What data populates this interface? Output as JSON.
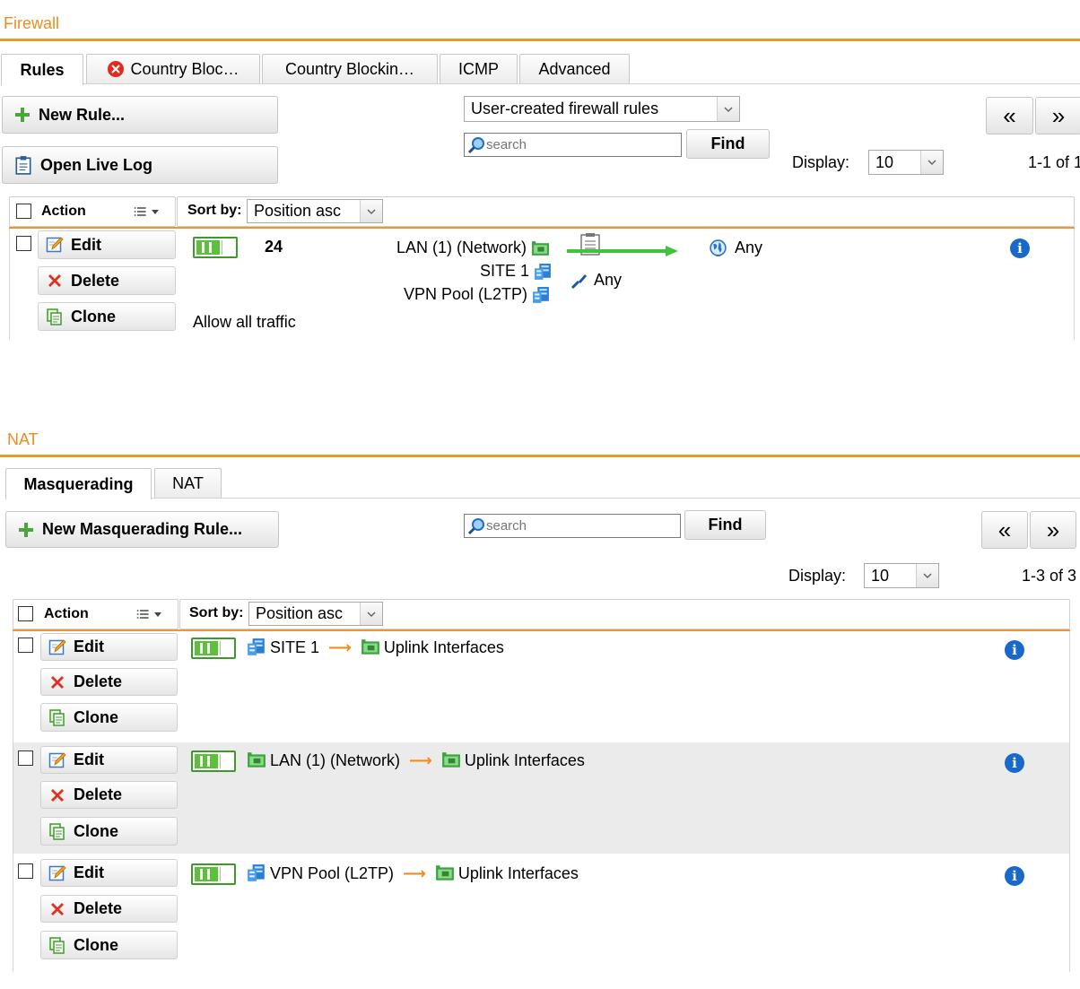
{
  "firewall": {
    "title": "Firewall",
    "tabs": [
      {
        "label": "Rules",
        "active": true
      },
      {
        "label": "Country Bloc…",
        "error": true
      },
      {
        "label": "Country Blockin…"
      },
      {
        "label": "ICMP"
      },
      {
        "label": "Advanced"
      }
    ],
    "new_rule_label": "New Rule...",
    "open_live_log_label": "Open Live Log",
    "filter_select_value": "User-created firewall rules",
    "search_placeholder": "search",
    "find_label": "Find",
    "prev_label": "«",
    "next_label": "»",
    "display_label": "Display:",
    "display_value": "10",
    "range_text": "1-1 of 1",
    "table": {
      "action_label": "Action",
      "sort_label": "Sort by:",
      "sort_value": "Position asc",
      "rows": [
        {
          "edit": "Edit",
          "delete": "Delete",
          "clone": "Clone",
          "enabled": true,
          "position": "24",
          "comment": "Allow all traffic",
          "sources": [
            "LAN (1) (Network)",
            "SITE 1",
            "VPN Pool (L2TP)"
          ],
          "service": "Any",
          "destination": "Any"
        }
      ]
    }
  },
  "nat": {
    "title": "NAT",
    "tabs": [
      {
        "label": "Masquerading",
        "active": true
      },
      {
        "label": "NAT"
      }
    ],
    "new_rule_label": "New Masquerading Rule...",
    "search_placeholder": "search",
    "find_label": "Find",
    "prev_label": "«",
    "next_label": "»",
    "display_label": "Display:",
    "display_value": "10",
    "range_text": "1-3 of 3",
    "table": {
      "action_label": "Action",
      "sort_label": "Sort by:",
      "sort_value": "Position asc",
      "rows": [
        {
          "edit": "Edit",
          "delete": "Delete",
          "clone": "Clone",
          "enabled": true,
          "network": "SITE 1",
          "network_icon": "host-icon",
          "interface": "Uplink Interfaces"
        },
        {
          "edit": "Edit",
          "delete": "Delete",
          "clone": "Clone",
          "enabled": true,
          "network": "LAN (1) (Network)",
          "network_icon": "network-icon",
          "interface": "Uplink Interfaces"
        },
        {
          "edit": "Edit",
          "delete": "Delete",
          "clone": "Clone",
          "enabled": true,
          "network": "VPN Pool (L2TP)",
          "network_icon": "host-icon",
          "interface": "Uplink Interfaces"
        }
      ]
    }
  },
  "colors": {
    "accent": "#f08c1e",
    "toggle_on": "#5dbf3c",
    "info": "#1869c8",
    "delete_x": "#e03020"
  }
}
